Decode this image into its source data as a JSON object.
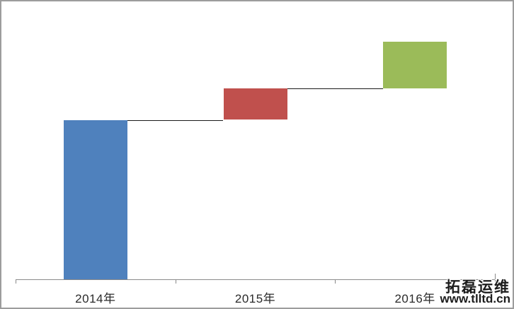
{
  "chart_data": {
    "type": "bar",
    "subtype": "waterfall-floating-columns",
    "title": "",
    "xlabel": "",
    "ylabel": "",
    "grid": false,
    "legend": false,
    "value_units": "estimated (no value axis shown in image)",
    "ylim": [
      0,
      380
    ],
    "categories": [
      "2014年",
      "2015年",
      "2016年"
    ],
    "series": [
      {
        "name": "yearly-segments",
        "segments": [
          {
            "category": "2014年",
            "start": 0,
            "end": 225,
            "delta": 225,
            "color": "#4F81BD"
          },
          {
            "category": "2015年",
            "start": 226,
            "end": 270,
            "delta": 44,
            "color": "#C0504D"
          },
          {
            "category": "2016年",
            "start": 270,
            "end": 336,
            "delta": 66,
            "color": "#9BBB59"
          }
        ]
      }
    ],
    "connectors": [
      {
        "from_category": "2014年",
        "to_category": "2015年",
        "level": 225
      },
      {
        "from_category": "2015年",
        "to_category": "2016年",
        "level": 270
      }
    ]
  },
  "colors": {
    "bar_2014": "#4F81BD",
    "bar_2015": "#C0504D",
    "bar_2016": "#9BBB59",
    "axis": "#8a8a8a",
    "connector": "#1a1a1a",
    "label_text": "#2b2b2b",
    "outer_border": "#9c9c9c",
    "background": "#ffffff"
  },
  "watermark": {
    "line1": "拓磊运维",
    "line2": "www.tlltd.cn"
  }
}
